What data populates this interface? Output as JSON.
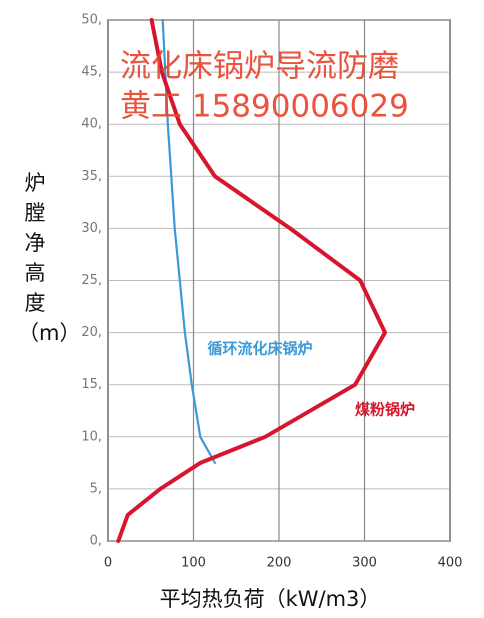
{
  "chart_data": {
    "type": "line",
    "y_label": "炉膛净高度（m）",
    "x_label": "平均热负荷（kW/m3）",
    "annotations": [
      "流化床锅炉导流防磨",
      "黄工 15890006029"
    ],
    "series": [
      {
        "name": "循环流化床锅炉",
        "color": "#3a9ad9",
        "x": [
          125,
          108,
          98,
          90,
          84,
          78,
          74,
          70,
          67,
          64
        ],
        "values": [
          7.5,
          10,
          15,
          20,
          25,
          30,
          35,
          40,
          45,
          50
        ]
      },
      {
        "name": "煤粉锅炉",
        "color": "#d7152c",
        "x": [
          12,
          23,
          61,
          108,
          184,
          289,
          324,
          295,
          213,
          125,
          84,
          63,
          51
        ],
        "values": [
          0,
          2.5,
          5,
          7.5,
          10,
          15,
          20,
          25,
          30,
          35,
          40,
          45,
          50
        ]
      }
    ],
    "xlim": [
      0,
      400
    ],
    "xticks": [
      0,
      100,
      200,
      300,
      400
    ],
    "ylim": [
      0,
      50
    ],
    "yticks": [
      {
        "value": 0,
        "label": "0,"
      },
      {
        "value": 5,
        "label": "5,"
      },
      {
        "value": 10,
        "label": "10,"
      },
      {
        "value": 15,
        "label": "15,"
      },
      {
        "value": 20,
        "label": "20,"
      },
      {
        "value": 25,
        "label": "25,"
      },
      {
        "value": 30,
        "label": "30,"
      },
      {
        "value": 35,
        "label": "35,"
      },
      {
        "value": 40,
        "label": "40,"
      },
      {
        "value": 45,
        "label": "45,"
      },
      {
        "value": 50,
        "label": "50,"
      }
    ],
    "grid": true
  }
}
